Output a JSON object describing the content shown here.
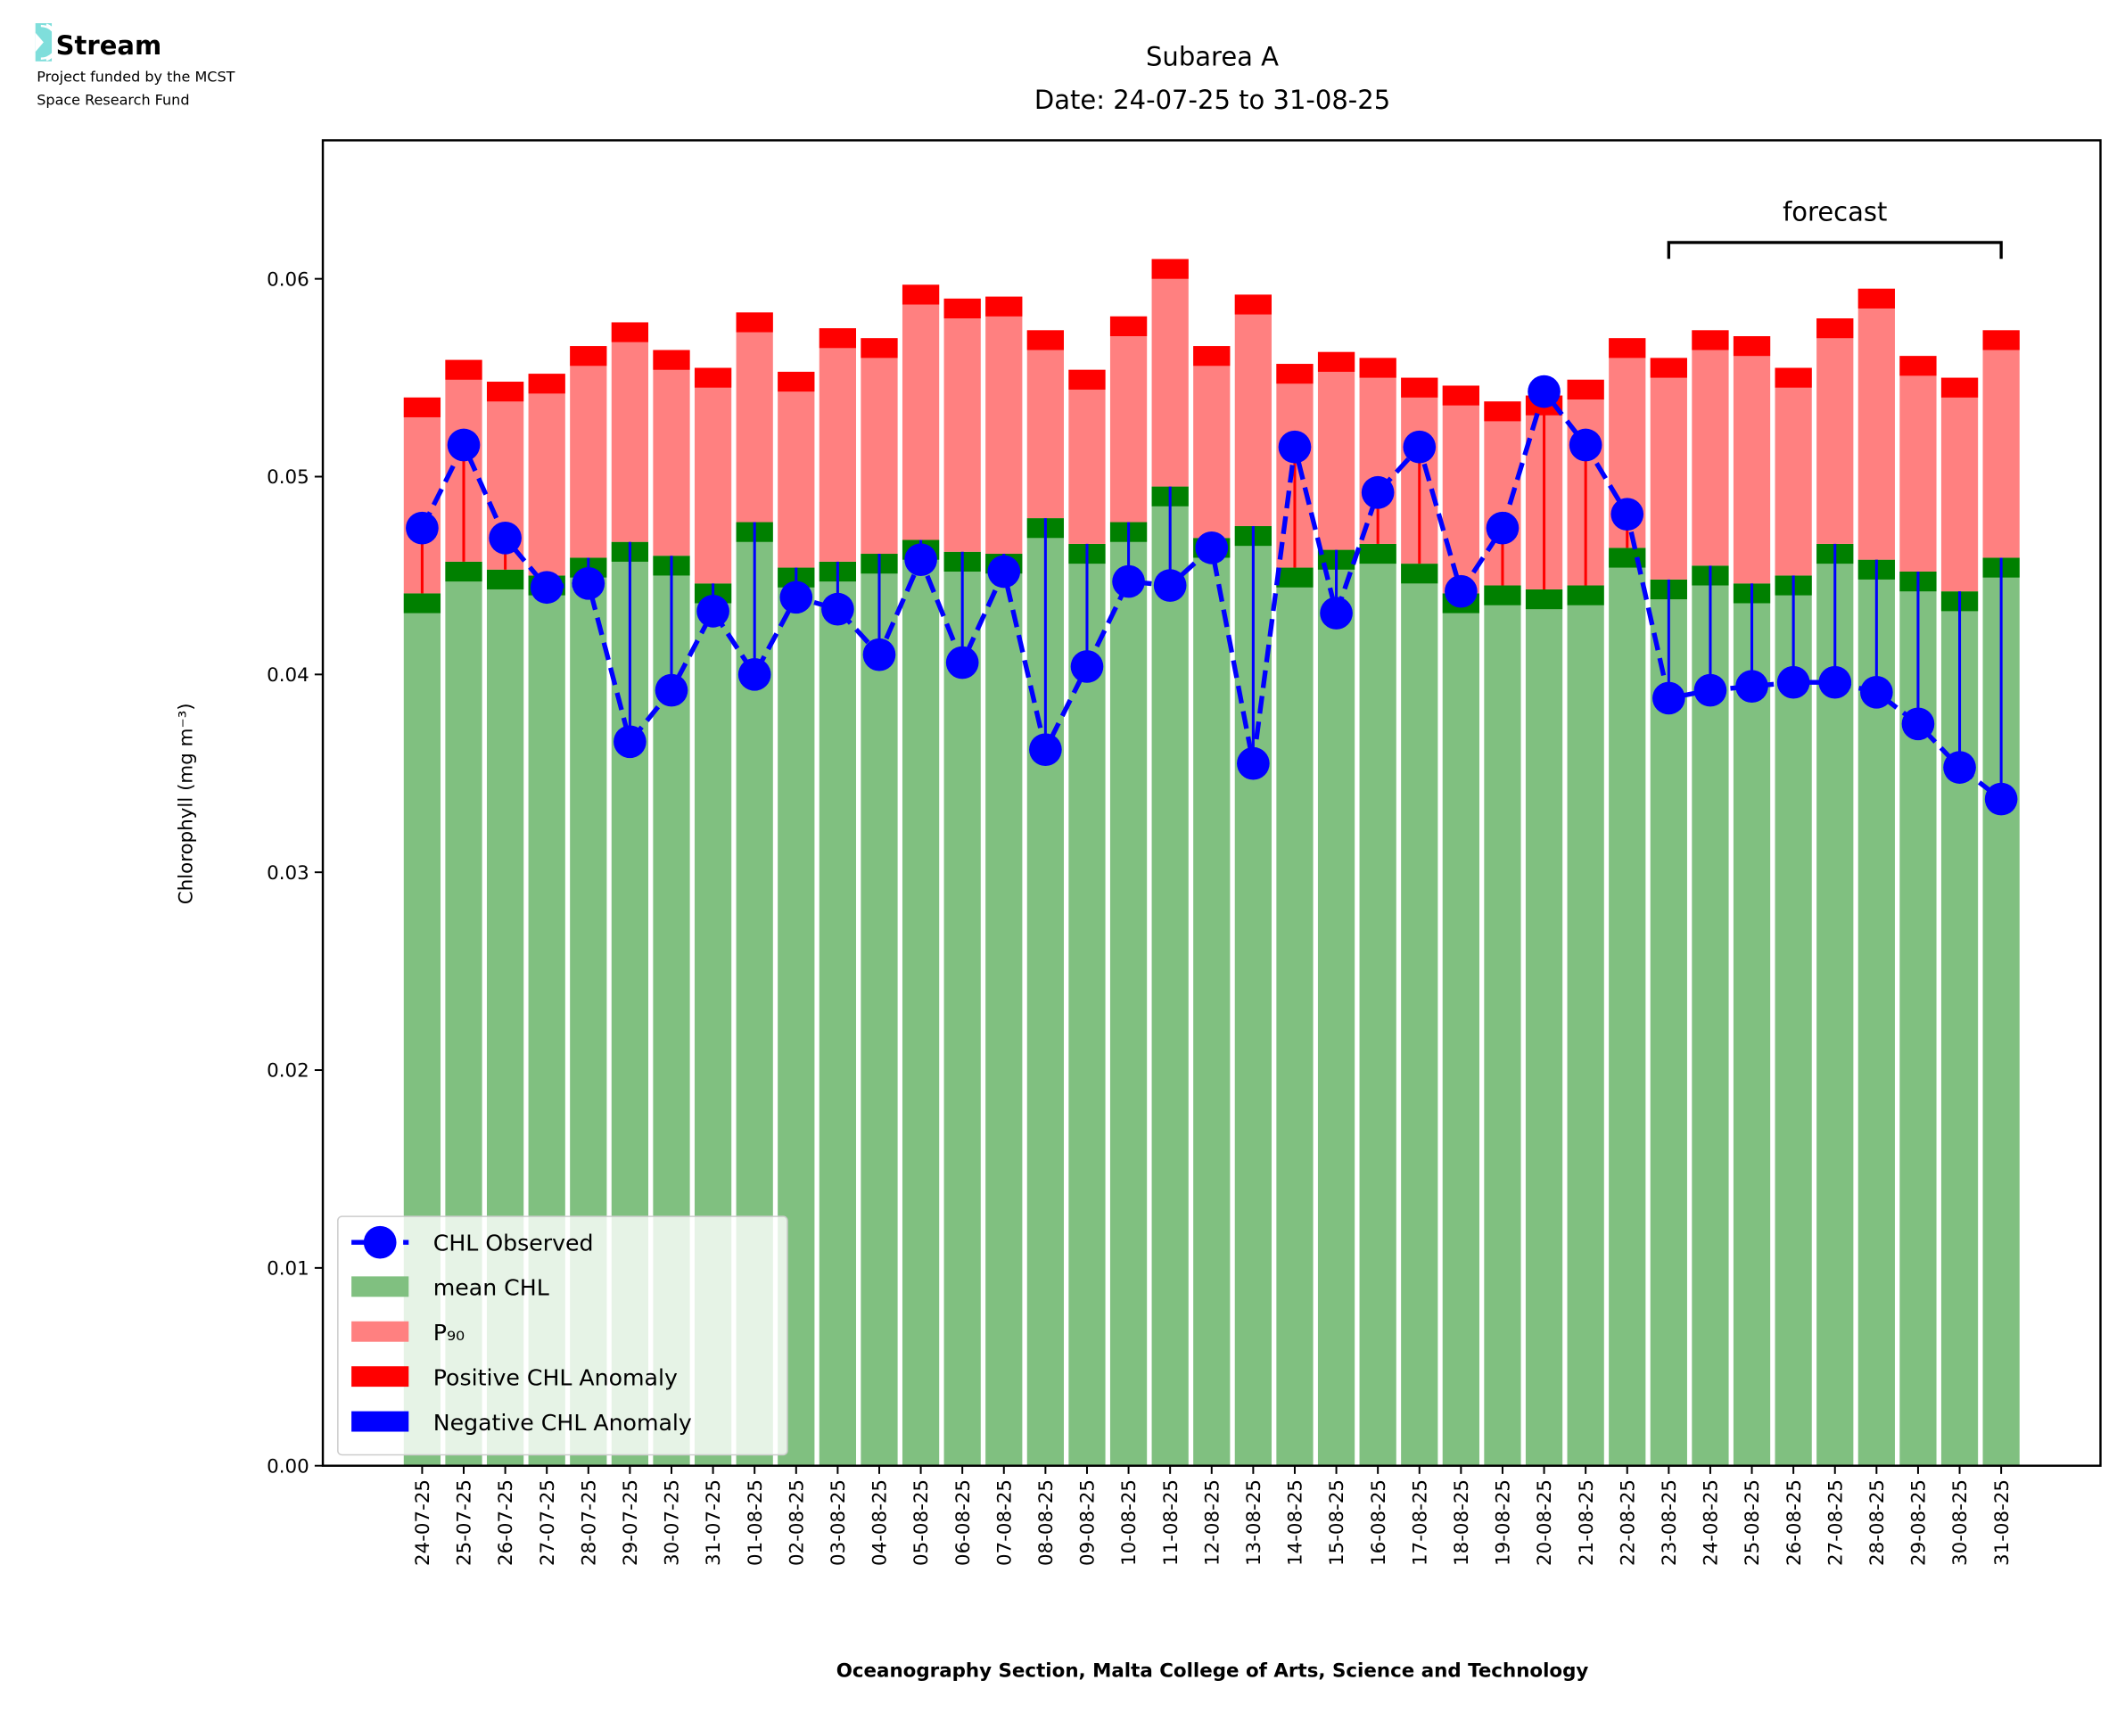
{
  "logo": {
    "name": "Stream",
    "line1": "Project funded by the MCST",
    "line2": "Space Research Fund",
    "color": "#7fdedb"
  },
  "chart_data": {
    "type": "bar",
    "title": "Subarea A",
    "subtitle": "Date: 24-07-25 to 31-08-25",
    "xlabel": "Oceanography Section, Malta College of Arts, Science and Technology",
    "ylabel": "Chlorophyll (mg m⁻³)",
    "ylim": [
      0,
      0.067
    ],
    "yticks": [
      "0.00",
      "0.01",
      "0.02",
      "0.03",
      "0.04",
      "0.05",
      "0.06"
    ],
    "grid": false,
    "legend_position": "lower-left",
    "annotation": {
      "text": "forecast",
      "from": "23-08-25",
      "to": "31-08-25"
    },
    "colors": {
      "mean": "#80c080",
      "mean_band": "#008000",
      "p90": "#ff8080",
      "p90_band": "#ff0000",
      "observed": "#0000ff",
      "pos": "#ff0000",
      "neg": "#0000ff"
    },
    "legend": [
      {
        "label": "CHL Observed",
        "kind": "line"
      },
      {
        "label": "mean CHL",
        "kind": "mean"
      },
      {
        "label": "P₉₀",
        "kind": "p90"
      },
      {
        "label": "Positive CHL Anomaly",
        "kind": "pos"
      },
      {
        "label": "Negative CHL Anomaly",
        "kind": "neg"
      }
    ],
    "categories": [
      "24-07-25",
      "25-07-25",
      "26-07-25",
      "27-07-25",
      "28-07-25",
      "29-07-25",
      "30-07-25",
      "31-07-25",
      "01-08-25",
      "02-08-25",
      "03-08-25",
      "04-08-25",
      "05-08-25",
      "06-08-25",
      "07-08-25",
      "08-08-25",
      "09-08-25",
      "10-08-25",
      "11-08-25",
      "12-08-25",
      "13-08-25",
      "14-08-25",
      "15-08-25",
      "16-08-25",
      "17-08-25",
      "18-08-25",
      "19-08-25",
      "20-08-25",
      "21-08-25",
      "22-08-25",
      "23-08-25",
      "24-08-25",
      "25-08-25",
      "26-08-25",
      "27-08-25",
      "28-08-25",
      "29-08-25",
      "30-08-25",
      "31-08-25"
    ],
    "series": [
      {
        "name": "mean CHL",
        "values": [
          0.0441,
          0.0457,
          0.0453,
          0.045,
          0.0459,
          0.0467,
          0.046,
          0.0446,
          0.0477,
          0.0454,
          0.0457,
          0.0461,
          0.0468,
          0.0462,
          0.0461,
          0.0479,
          0.0466,
          0.0477,
          0.0495,
          0.0469,
          0.0475,
          0.0454,
          0.0463,
          0.0466,
          0.0456,
          0.0441,
          0.0445,
          0.0443,
          0.0445,
          0.0464,
          0.0448,
          0.0455,
          0.0446,
          0.045,
          0.0466,
          0.0458,
          0.0452,
          0.0442,
          0.0459
        ]
      },
      {
        "name": "P90",
        "values": [
          0.054,
          0.0559,
          0.0548,
          0.0552,
          0.0566,
          0.0578,
          0.0564,
          0.0555,
          0.0583,
          0.0553,
          0.0575,
          0.057,
          0.0597,
          0.059,
          0.0591,
          0.0574,
          0.0554,
          0.0581,
          0.061,
          0.0566,
          0.0592,
          0.0557,
          0.0563,
          0.056,
          0.055,
          0.0546,
          0.0538,
          0.0541,
          0.0549,
          0.057,
          0.056,
          0.0574,
          0.0571,
          0.0555,
          0.058,
          0.0595,
          0.0561,
          0.055,
          0.0574
        ]
      },
      {
        "name": "CHL Observed",
        "values": [
          0.0474,
          0.0516,
          0.0469,
          0.0444,
          0.0446,
          0.0366,
          0.0392,
          0.0432,
          0.04,
          0.0439,
          0.0433,
          0.041,
          0.0458,
          0.0406,
          0.0452,
          0.0362,
          0.0404,
          0.0447,
          0.0445,
          0.0464,
          0.0355,
          0.0515,
          0.0431,
          0.0492,
          0.0515,
          0.0442,
          0.0474,
          0.0543,
          0.0516,
          0.0481,
          0.0388,
          0.0392,
          0.0394,
          0.0396,
          0.0396,
          0.0391,
          0.0375,
          0.0353,
          0.0337
        ]
      }
    ]
  }
}
